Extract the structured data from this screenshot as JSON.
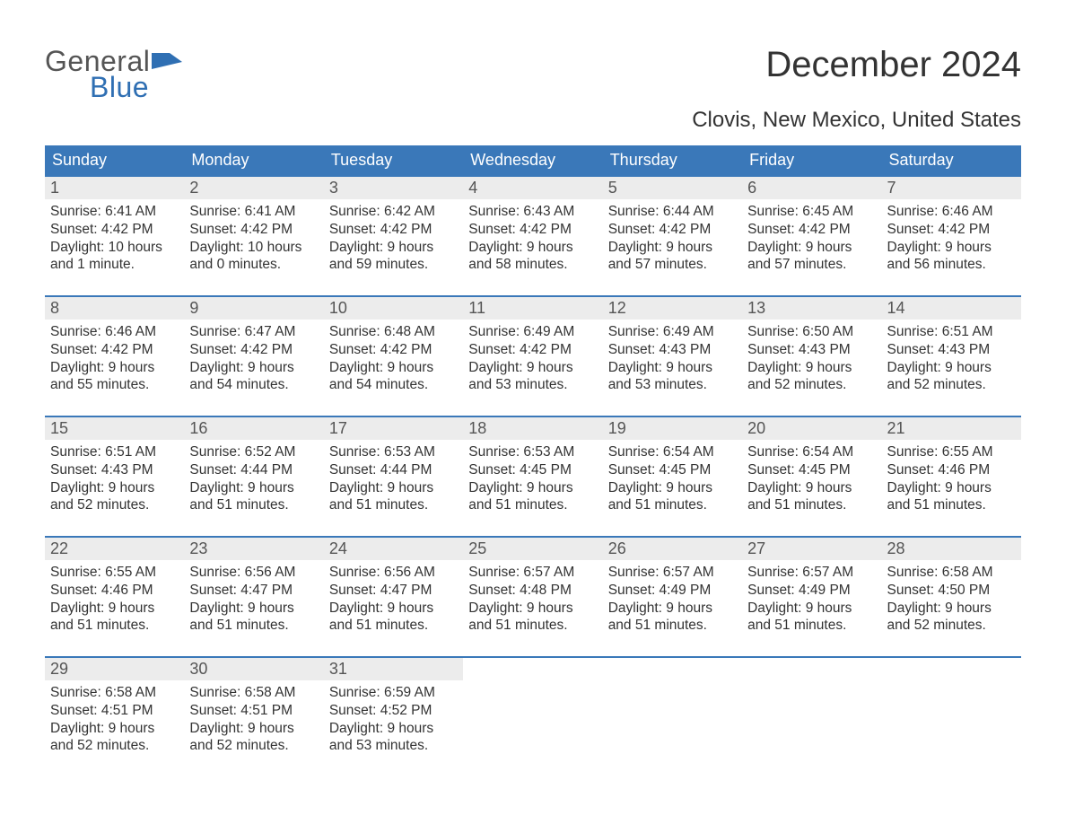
{
  "logo": {
    "general": "General",
    "blue": "Blue"
  },
  "title": "December 2024",
  "subtitle": "Clovis, New Mexico, United States",
  "colors": {
    "header_bg": "#3a78b9",
    "header_text": "#ffffff",
    "daynum_bg": "#ececec",
    "week_border": "#3a78b9",
    "body_text": "#333333",
    "logo_gray": "#555555",
    "logo_blue": "#2f6fb3",
    "page_bg": "#ffffff"
  },
  "typography": {
    "title_fontsize": 40,
    "subtitle_fontsize": 24,
    "dayhead_fontsize": 18,
    "daynum_fontsize": 18,
    "body_fontsize": 15.5,
    "font_family": "Arial"
  },
  "day_names": [
    "Sunday",
    "Monday",
    "Tuesday",
    "Wednesday",
    "Thursday",
    "Friday",
    "Saturday"
  ],
  "weeks": [
    [
      {
        "n": "1",
        "sr": "Sunrise: 6:41 AM",
        "ss": "Sunset: 4:42 PM",
        "d1": "Daylight: 10 hours",
        "d2": "and 1 minute."
      },
      {
        "n": "2",
        "sr": "Sunrise: 6:41 AM",
        "ss": "Sunset: 4:42 PM",
        "d1": "Daylight: 10 hours",
        "d2": "and 0 minutes."
      },
      {
        "n": "3",
        "sr": "Sunrise: 6:42 AM",
        "ss": "Sunset: 4:42 PM",
        "d1": "Daylight: 9 hours",
        "d2": "and 59 minutes."
      },
      {
        "n": "4",
        "sr": "Sunrise: 6:43 AM",
        "ss": "Sunset: 4:42 PM",
        "d1": "Daylight: 9 hours",
        "d2": "and 58 minutes."
      },
      {
        "n": "5",
        "sr": "Sunrise: 6:44 AM",
        "ss": "Sunset: 4:42 PM",
        "d1": "Daylight: 9 hours",
        "d2": "and 57 minutes."
      },
      {
        "n": "6",
        "sr": "Sunrise: 6:45 AM",
        "ss": "Sunset: 4:42 PM",
        "d1": "Daylight: 9 hours",
        "d2": "and 57 minutes."
      },
      {
        "n": "7",
        "sr": "Sunrise: 6:46 AM",
        "ss": "Sunset: 4:42 PM",
        "d1": "Daylight: 9 hours",
        "d2": "and 56 minutes."
      }
    ],
    [
      {
        "n": "8",
        "sr": "Sunrise: 6:46 AM",
        "ss": "Sunset: 4:42 PM",
        "d1": "Daylight: 9 hours",
        "d2": "and 55 minutes."
      },
      {
        "n": "9",
        "sr": "Sunrise: 6:47 AM",
        "ss": "Sunset: 4:42 PM",
        "d1": "Daylight: 9 hours",
        "d2": "and 54 minutes."
      },
      {
        "n": "10",
        "sr": "Sunrise: 6:48 AM",
        "ss": "Sunset: 4:42 PM",
        "d1": "Daylight: 9 hours",
        "d2": "and 54 minutes."
      },
      {
        "n": "11",
        "sr": "Sunrise: 6:49 AM",
        "ss": "Sunset: 4:42 PM",
        "d1": "Daylight: 9 hours",
        "d2": "and 53 minutes."
      },
      {
        "n": "12",
        "sr": "Sunrise: 6:49 AM",
        "ss": "Sunset: 4:43 PM",
        "d1": "Daylight: 9 hours",
        "d2": "and 53 minutes."
      },
      {
        "n": "13",
        "sr": "Sunrise: 6:50 AM",
        "ss": "Sunset: 4:43 PM",
        "d1": "Daylight: 9 hours",
        "d2": "and 52 minutes."
      },
      {
        "n": "14",
        "sr": "Sunrise: 6:51 AM",
        "ss": "Sunset: 4:43 PM",
        "d1": "Daylight: 9 hours",
        "d2": "and 52 minutes."
      }
    ],
    [
      {
        "n": "15",
        "sr": "Sunrise: 6:51 AM",
        "ss": "Sunset: 4:43 PM",
        "d1": "Daylight: 9 hours",
        "d2": "and 52 minutes."
      },
      {
        "n": "16",
        "sr": "Sunrise: 6:52 AM",
        "ss": "Sunset: 4:44 PM",
        "d1": "Daylight: 9 hours",
        "d2": "and 51 minutes."
      },
      {
        "n": "17",
        "sr": "Sunrise: 6:53 AM",
        "ss": "Sunset: 4:44 PM",
        "d1": "Daylight: 9 hours",
        "d2": "and 51 minutes."
      },
      {
        "n": "18",
        "sr": "Sunrise: 6:53 AM",
        "ss": "Sunset: 4:45 PM",
        "d1": "Daylight: 9 hours",
        "d2": "and 51 minutes."
      },
      {
        "n": "19",
        "sr": "Sunrise: 6:54 AM",
        "ss": "Sunset: 4:45 PM",
        "d1": "Daylight: 9 hours",
        "d2": "and 51 minutes."
      },
      {
        "n": "20",
        "sr": "Sunrise: 6:54 AM",
        "ss": "Sunset: 4:45 PM",
        "d1": "Daylight: 9 hours",
        "d2": "and 51 minutes."
      },
      {
        "n": "21",
        "sr": "Sunrise: 6:55 AM",
        "ss": "Sunset: 4:46 PM",
        "d1": "Daylight: 9 hours",
        "d2": "and 51 minutes."
      }
    ],
    [
      {
        "n": "22",
        "sr": "Sunrise: 6:55 AM",
        "ss": "Sunset: 4:46 PM",
        "d1": "Daylight: 9 hours",
        "d2": "and 51 minutes."
      },
      {
        "n": "23",
        "sr": "Sunrise: 6:56 AM",
        "ss": "Sunset: 4:47 PM",
        "d1": "Daylight: 9 hours",
        "d2": "and 51 minutes."
      },
      {
        "n": "24",
        "sr": "Sunrise: 6:56 AM",
        "ss": "Sunset: 4:47 PM",
        "d1": "Daylight: 9 hours",
        "d2": "and 51 minutes."
      },
      {
        "n": "25",
        "sr": "Sunrise: 6:57 AM",
        "ss": "Sunset: 4:48 PM",
        "d1": "Daylight: 9 hours",
        "d2": "and 51 minutes."
      },
      {
        "n": "26",
        "sr": "Sunrise: 6:57 AM",
        "ss": "Sunset: 4:49 PM",
        "d1": "Daylight: 9 hours",
        "d2": "and 51 minutes."
      },
      {
        "n": "27",
        "sr": "Sunrise: 6:57 AM",
        "ss": "Sunset: 4:49 PM",
        "d1": "Daylight: 9 hours",
        "d2": "and 51 minutes."
      },
      {
        "n": "28",
        "sr": "Sunrise: 6:58 AM",
        "ss": "Sunset: 4:50 PM",
        "d1": "Daylight: 9 hours",
        "d2": "and 52 minutes."
      }
    ],
    [
      {
        "n": "29",
        "sr": "Sunrise: 6:58 AM",
        "ss": "Sunset: 4:51 PM",
        "d1": "Daylight: 9 hours",
        "d2": "and 52 minutes."
      },
      {
        "n": "30",
        "sr": "Sunrise: 6:58 AM",
        "ss": "Sunset: 4:51 PM",
        "d1": "Daylight: 9 hours",
        "d2": "and 52 minutes."
      },
      {
        "n": "31",
        "sr": "Sunrise: 6:59 AM",
        "ss": "Sunset: 4:52 PM",
        "d1": "Daylight: 9 hours",
        "d2": "and 53 minutes."
      },
      null,
      null,
      null,
      null
    ]
  ]
}
